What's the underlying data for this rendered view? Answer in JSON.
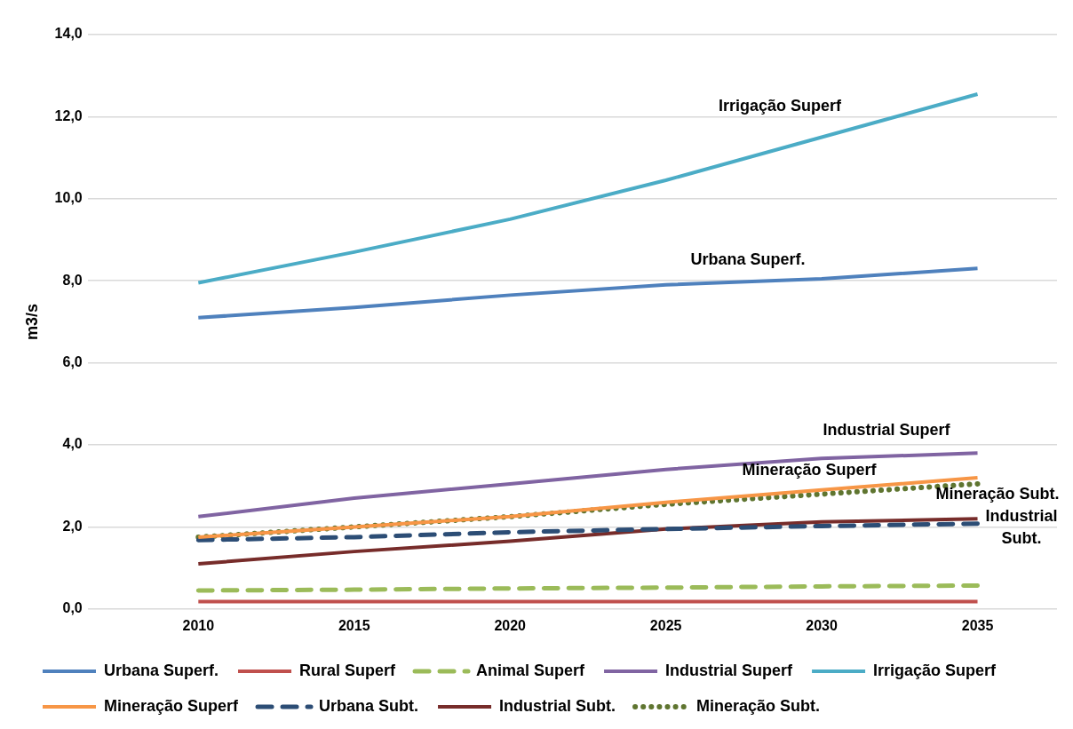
{
  "chart_data": {
    "type": "line",
    "ylabel": "m3/s",
    "x": [
      2010,
      2015,
      2020,
      2025,
      2030,
      2035
    ],
    "xlim": [
      2006.45,
      2037.55
    ],
    "xticks": [
      2010,
      2015,
      2020,
      2025,
      2030,
      2035
    ],
    "ylim": [
      0,
      14
    ],
    "yticks": [
      {
        "value": 0,
        "label": "0,0"
      },
      {
        "value": 2,
        "label": "2,0"
      },
      {
        "value": 4,
        "label": "4,0"
      },
      {
        "value": 6,
        "label": "6,0"
      },
      {
        "value": 8,
        "label": "8,0"
      },
      {
        "value": 10,
        "label": "10,0"
      },
      {
        "value": 12,
        "label": "12,0"
      },
      {
        "value": 14,
        "label": "14,0"
      }
    ],
    "grid": "y",
    "legend": "bottom",
    "marker": "none",
    "series": [
      {
        "name": "Urbana Superf.",
        "color": "#4f81bd",
        "line_style": "solid",
        "values": [
          7.1,
          7.35,
          7.65,
          7.9,
          8.05,
          8.3
        ]
      },
      {
        "name": "Rural Superf",
        "color": "#c0504d",
        "line_style": "solid",
        "values": [
          0.18,
          0.18,
          0.18,
          0.18,
          0.18,
          0.18
        ]
      },
      {
        "name": "Animal Superf",
        "color": "#9bbb59",
        "line_style": "dashed",
        "values": [
          0.45,
          0.47,
          0.5,
          0.52,
          0.55,
          0.57
        ]
      },
      {
        "name": "Industrial Superf",
        "color": "#8064a2",
        "line_style": "solid",
        "values": [
          2.25,
          2.7,
          3.05,
          3.4,
          3.67,
          3.8
        ]
      },
      {
        "name": "Irrigação Superf",
        "color": "#4bacc6",
        "line_style": "solid",
        "values": [
          7.95,
          8.7,
          9.5,
          10.45,
          11.5,
          12.55
        ]
      },
      {
        "name": "Mineração Superf",
        "color": "#f79646",
        "line_style": "solid",
        "values": [
          1.75,
          2.0,
          2.25,
          2.6,
          2.9,
          3.2
        ]
      },
      {
        "name": "Urbana Subt.",
        "color": "#2c4d75",
        "line_style": "dashed",
        "values": [
          1.68,
          1.75,
          1.87,
          1.95,
          2.02,
          2.08
        ]
      },
      {
        "name": "Industrial Subt.",
        "color": "#772c2a",
        "line_style": "solid",
        "values": [
          1.1,
          1.4,
          1.65,
          1.95,
          2.12,
          2.2
        ]
      },
      {
        "name": "Mineração Subt.",
        "color": "#5f7530",
        "line_style": "dotted",
        "values": [
          1.75,
          2.0,
          2.25,
          2.55,
          2.8,
          3.05
        ]
      }
    ],
    "annotations": [
      "Irrigação Superf",
      "Urbana Superf.",
      "Industrial Superf",
      "Mineração Superf",
      "Mineração Subt.",
      "Industrial Subt."
    ]
  }
}
